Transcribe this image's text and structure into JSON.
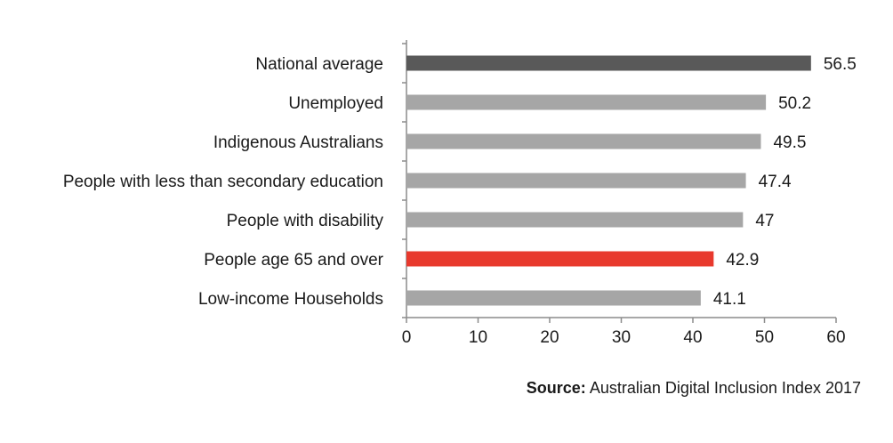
{
  "chart_data": {
    "type": "bar",
    "orientation": "horizontal",
    "categories": [
      "National average",
      "Unemployed",
      "Indigenous Australians",
      "People with less than secondary education",
      "People with disability",
      "People age 65 and over",
      "Low-income Households"
    ],
    "values": [
      56.5,
      50.2,
      49.5,
      47.4,
      47,
      42.9,
      41.1
    ],
    "value_labels": [
      "56.5",
      "50.2",
      "49.5",
      "47.4",
      "47",
      "42.9",
      "41.1"
    ],
    "bar_colors": [
      "#595959",
      "#a6a6a6",
      "#a6a6a6",
      "#a6a6a6",
      "#a6a6a6",
      "#e8392d",
      "#a6a6a6"
    ],
    "xlim": [
      0,
      60
    ],
    "xticks": [
      "0",
      "10",
      "20",
      "30",
      "40",
      "50",
      "60"
    ],
    "title": "",
    "xlabel": "",
    "ylabel": "",
    "grid": false
  },
  "source": {
    "label": "Source:",
    "text": "Australian Digital Inclusion Index 2017"
  },
  "colors": {
    "axis": "#8c8c8c",
    "text": "#1a1a1a"
  }
}
